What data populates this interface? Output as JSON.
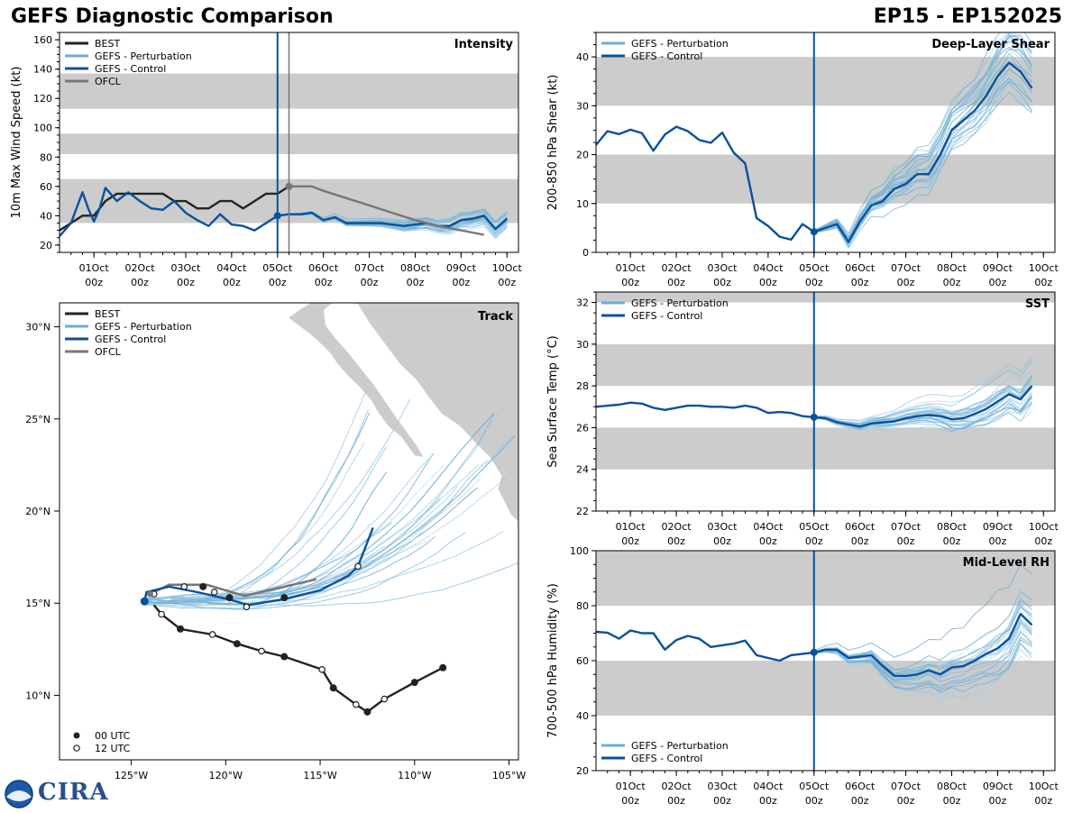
{
  "page": {
    "title_left": "GEFS Diagnostic Comparison",
    "title_right": "EP15 - EP152025",
    "logo_text": "CIRA"
  },
  "colors": {
    "best": "#222222",
    "perturbation": "#6baed6",
    "control": "#08519c",
    "ofcl": "#777777",
    "band": "#cccccc"
  },
  "time_axis": {
    "ticks": [
      {
        "t": 0,
        "day": "01Oct",
        "hour": "00z"
      },
      {
        "t": 24,
        "day": "02Oct",
        "hour": "00z"
      },
      {
        "t": 48,
        "day": "03Oct",
        "hour": "00z"
      },
      {
        "t": 72,
        "day": "04Oct",
        "hour": "00z"
      },
      {
        "t": 96,
        "day": "05Oct",
        "hour": "00z"
      },
      {
        "t": 120,
        "day": "06Oct",
        "hour": "00z"
      },
      {
        "t": 144,
        "day": "07Oct",
        "hour": "00z"
      },
      {
        "t": 168,
        "day": "08Oct",
        "hour": "00z"
      },
      {
        "t": 192,
        "day": "09Oct",
        "hour": "00z"
      },
      {
        "t": 216,
        "day": "10Oct",
        "hour": "00z"
      }
    ],
    "range": [
      -18,
      222
    ],
    "init_time": 96,
    "ofcl_time": 102
  },
  "chart_data": [
    {
      "id": "intensity",
      "type": "line",
      "title": "Intensity",
      "ylabel": "10m Max Wind Speed (kt)",
      "ylim": [
        15,
        165
      ],
      "yticks": [
        20,
        40,
        60,
        80,
        100,
        120,
        140,
        160
      ],
      "bands": [
        [
          35,
          65
        ],
        [
          82,
          96
        ],
        [
          113,
          137
        ]
      ],
      "legend": [
        "BEST",
        "GEFS - Perturbation",
        "GEFS - Control",
        "OFCL"
      ],
      "series": [
        {
          "name": "BEST",
          "t": [
            -18,
            -12,
            -6,
            0,
            6,
            12,
            18,
            24,
            30,
            36,
            42,
            48,
            54,
            60,
            66,
            72,
            78,
            84,
            90,
            96,
            102
          ],
          "values": [
            30,
            35,
            40,
            40,
            50,
            55,
            55,
            55,
            55,
            55,
            50,
            50,
            45,
            45,
            50,
            50,
            45,
            50,
            55,
            55,
            60
          ]
        },
        {
          "name": "GEFS - Control",
          "t": [
            -18,
            -12,
            -6,
            -3,
            0,
            3,
            6,
            12,
            18,
            24,
            30,
            36,
            42,
            48,
            54,
            60,
            66,
            72,
            78,
            84,
            90,
            96,
            102,
            108,
            114,
            120,
            126,
            132,
            138,
            144,
            150,
            156,
            162,
            168,
            174,
            180,
            186,
            192,
            198,
            204,
            210,
            216
          ],
          "values": [
            26,
            35,
            56,
            45,
            36,
            45,
            59,
            50,
            56,
            50,
            45,
            44,
            50,
            42,
            37,
            33,
            41,
            34,
            33,
            30,
            35,
            40,
            41,
            41,
            42,
            37,
            39,
            35,
            35,
            35,
            35,
            34,
            33,
            34,
            35,
            33,
            33,
            37,
            38,
            40,
            31,
            38
          ]
        },
        {
          "name": "OFCL",
          "t": [
            102,
            108,
            114,
            120,
            132,
            144,
            156,
            168,
            180,
            192,
            204
          ],
          "values": [
            60,
            60,
            60,
            57,
            52,
            47,
            42,
            37,
            33,
            30,
            27
          ]
        }
      ],
      "ensemble_count": 30
    },
    {
      "id": "shear",
      "type": "line",
      "title": "Deep-Layer Shear",
      "ylabel": "200-850 hPa Shear (kt)",
      "ylim": [
        0,
        45
      ],
      "yticks": [
        0,
        10,
        20,
        30,
        40
      ],
      "bands": [
        [
          10,
          20
        ],
        [
          30,
          40
        ]
      ],
      "legend": [
        "GEFS - Perturbation",
        "GEFS - Control"
      ],
      "series": [
        {
          "name": "GEFS - Control",
          "t": [
            -18,
            -12,
            -6,
            0,
            6,
            12,
            18,
            24,
            30,
            36,
            42,
            48,
            54,
            60,
            66,
            72,
            78,
            84,
            90,
            96,
            102,
            108,
            114,
            120,
            126,
            132,
            138,
            144,
            150,
            156,
            162,
            168,
            174,
            180,
            186,
            192,
            198,
            204,
            210
          ],
          "values": [
            22,
            24.8,
            24.2,
            25.1,
            24.4,
            20.8,
            24.1,
            25.7,
            24.8,
            23,
            22.4,
            24.5,
            20.4,
            18.2,
            7,
            5.4,
            3.2,
            2.6,
            5.8,
            4.2,
            5,
            5.8,
            2.1,
            6.3,
            9.6,
            10.5,
            13,
            14,
            16,
            16,
            20,
            25,
            27,
            29,
            32,
            36,
            38.8,
            37,
            33.6
          ]
        }
      ],
      "ensemble_count": 30
    },
    {
      "id": "sst",
      "type": "line",
      "title": "SST",
      "ylabel": "Sea Surface Temp (°C)",
      "ylim": [
        22,
        32.5
      ],
      "yticks": [
        22,
        24,
        26,
        28,
        30,
        32
      ],
      "bands": [
        [
          24,
          26
        ],
        [
          28,
          30
        ],
        [
          32,
          34
        ]
      ],
      "legend": [
        "GEFS - Perturbation",
        "GEFS - Control"
      ],
      "series": [
        {
          "name": "GEFS - Control",
          "t": [
            -18,
            -12,
            -6,
            0,
            6,
            12,
            18,
            24,
            30,
            36,
            42,
            48,
            54,
            60,
            66,
            72,
            78,
            84,
            90,
            96,
            102,
            108,
            114,
            120,
            126,
            132,
            138,
            144,
            150,
            156,
            162,
            168,
            174,
            180,
            186,
            192,
            198,
            204,
            210
          ],
          "values": [
            27.0,
            27.05,
            27.1,
            27.2,
            27.15,
            26.95,
            26.85,
            26.95,
            27.05,
            27.05,
            27.0,
            27.0,
            26.95,
            27.05,
            26.95,
            26.7,
            26.75,
            26.7,
            26.55,
            26.5,
            26.45,
            26.25,
            26.15,
            26.05,
            26.2,
            26.25,
            26.3,
            26.45,
            26.55,
            26.6,
            26.55,
            26.4,
            26.45,
            26.65,
            26.9,
            27.25,
            27.6,
            27.35,
            28.0
          ]
        }
      ],
      "ensemble_count": 30
    },
    {
      "id": "rh",
      "type": "line",
      "title": "Mid-Level RH",
      "ylabel": "700-500 hPa Humidity (%)",
      "ylim": [
        20,
        100
      ],
      "yticks": [
        20,
        40,
        60,
        80,
        100
      ],
      "bands": [
        [
          40,
          60
        ],
        [
          80,
          100
        ]
      ],
      "legend": [
        "GEFS - Perturbation",
        "GEFS - Control"
      ],
      "series": [
        {
          "name": "GEFS - Control",
          "t": [
            -18,
            -12,
            -6,
            0,
            6,
            12,
            18,
            24,
            30,
            36,
            42,
            48,
            54,
            60,
            66,
            72,
            78,
            84,
            90,
            96,
            102,
            108,
            114,
            120,
            126,
            132,
            138,
            144,
            150,
            156,
            162,
            168,
            174,
            180,
            186,
            192,
            198,
            204,
            210
          ],
          "values": [
            70.5,
            70.2,
            68,
            71,
            70,
            70,
            64,
            67.5,
            69,
            68,
            65,
            65.6,
            66.2,
            67.3,
            62,
            61,
            60,
            62,
            62.5,
            63,
            64,
            64,
            61,
            61.5,
            62,
            58,
            54.5,
            54.4,
            55,
            56.5,
            55,
            57.5,
            58,
            60,
            62.5,
            64.5,
            68,
            77,
            73
          ]
        }
      ],
      "ensemble_count": 30
    },
    {
      "id": "track",
      "type": "scatter",
      "title": "Track",
      "xlim": [
        -128.8,
        -104.5
      ],
      "ylim": [
        6.5,
        31.3
      ],
      "xticks": [
        {
          "v": -125,
          "label": "125°W"
        },
        {
          "v": -120,
          "label": "120°W"
        },
        {
          "v": -115,
          "label": "115°W"
        },
        {
          "v": -110,
          "label": "110°W"
        },
        {
          "v": -105,
          "label": "105°W"
        }
      ],
      "yticks": [
        {
          "v": 10,
          "label": "10°N"
        },
        {
          "v": 15,
          "label": "15°N"
        },
        {
          "v": 20,
          "label": "20°N"
        },
        {
          "v": 25,
          "label": "25°N"
        },
        {
          "v": 30,
          "label": "30°N"
        }
      ],
      "legend": [
        "BEST",
        "GEFS - Perturbation",
        "GEFS - Control",
        "OFCL"
      ],
      "marker_legend": [
        "00 UTC",
        "12 UTC"
      ],
      "best_track": [
        {
          "lon": -108.5,
          "lat": 11.5,
          "utc": "00"
        },
        {
          "lon": -110.0,
          "lat": 10.7,
          "utc": "00"
        },
        {
          "lon": -111.6,
          "lat": 9.8,
          "utc": "12"
        },
        {
          "lon": -112.5,
          "lat": 9.1,
          "utc": "00"
        },
        {
          "lon": -113.1,
          "lat": 9.5,
          "utc": "12"
        },
        {
          "lon": -114.3,
          "lat": 10.4,
          "utc": "00"
        },
        {
          "lon": -114.9,
          "lat": 11.4,
          "utc": "12"
        },
        {
          "lon": -116.9,
          "lat": 12.1,
          "utc": "00"
        },
        {
          "lon": -118.1,
          "lat": 12.4,
          "utc": "12"
        },
        {
          "lon": -119.4,
          "lat": 12.8,
          "utc": "00"
        },
        {
          "lon": -120.7,
          "lat": 13.3,
          "utc": "12"
        },
        {
          "lon": -122.4,
          "lat": 13.6,
          "utc": "00"
        },
        {
          "lon": -123.4,
          "lat": 14.4,
          "utc": "12"
        },
        {
          "lon": -123.8,
          "lat": 14.9,
          "utc": "none"
        }
      ],
      "control_track": [
        {
          "lon": -124.3,
          "lat": 15.1,
          "utc": "init"
        },
        {
          "lon": -124.2,
          "lat": 15.6,
          "utc": "none"
        },
        {
          "lon": -123.0,
          "lat": 15.9,
          "utc": "none"
        },
        {
          "lon": -121.5,
          "lat": 15.6,
          "utc": "none"
        },
        {
          "lon": -119.8,
          "lat": 15.2,
          "utc": "none"
        },
        {
          "lon": -118.8,
          "lat": 14.9,
          "utc": "none"
        },
        {
          "lon": -117.0,
          "lat": 15.2,
          "utc": "none"
        },
        {
          "lon": -115.0,
          "lat": 15.7,
          "utc": "none"
        },
        {
          "lon": -113.5,
          "lat": 16.5,
          "utc": "none"
        },
        {
          "lon": -113.0,
          "lat": 17.0,
          "utc": "none"
        },
        {
          "lon": -112.2,
          "lat": 19.1,
          "utc": "none"
        }
      ],
      "control_markers": [
        {
          "lon": -123.8,
          "lat": 15.5,
          "utc": "12"
        },
        {
          "lon": -122.2,
          "lat": 15.9,
          "utc": "12"
        },
        {
          "lon": -120.6,
          "lat": 15.6,
          "utc": "12"
        },
        {
          "lon": -118.9,
          "lat": 14.8,
          "utc": "12"
        },
        {
          "lon": -113.0,
          "lat": 17.0,
          "utc": "12"
        },
        {
          "lon": -121.2,
          "lat": 15.9,
          "utc": "00"
        },
        {
          "lon": -119.8,
          "lat": 15.3,
          "utc": "00"
        },
        {
          "lon": -116.9,
          "lat": 15.3,
          "utc": "00"
        }
      ],
      "ofcl_track": [
        {
          "lon": -124.0,
          "lat": 15.5
        },
        {
          "lon": -123.0,
          "lat": 16.0
        },
        {
          "lon": -121.0,
          "lat": 16.0
        },
        {
          "lon": -119.0,
          "lat": 15.4
        },
        {
          "lon": -117.3,
          "lat": 15.8
        },
        {
          "lon": -115.2,
          "lat": 16.3
        }
      ],
      "ensemble_count": 30
    }
  ]
}
